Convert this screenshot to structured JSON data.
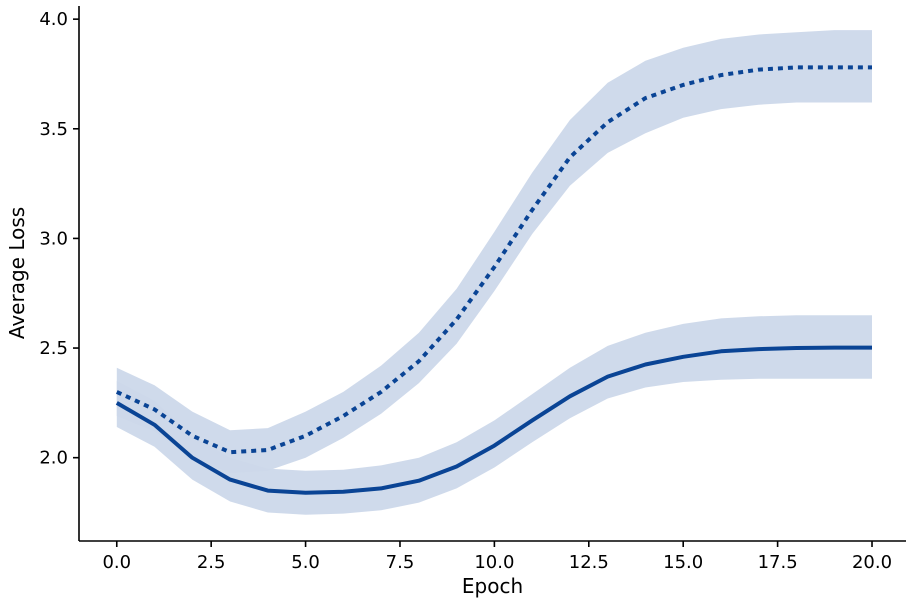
{
  "chart_data": {
    "type": "line",
    "title": "",
    "xlabel": "Epoch",
    "ylabel": "Average Loss",
    "xlim": [
      -1.0,
      20.9
    ],
    "ylim": [
      1.62,
      4.06
    ],
    "xticks": [
      0.0,
      2.5,
      5.0,
      7.5,
      10.0,
      12.5,
      15.0,
      17.5,
      20.0
    ],
    "xtick_labels": [
      "0.0",
      "2.5",
      "5.0",
      "7.5",
      "10.0",
      "12.5",
      "15.0",
      "17.5",
      "20.0"
    ],
    "yticks": [
      2.0,
      2.5,
      3.0,
      3.5,
      4.0
    ],
    "ytick_labels": [
      "2.0",
      "2.5",
      "3.0",
      "3.5",
      "4.0"
    ],
    "grid": false,
    "legend": "none",
    "x": [
      0,
      1,
      2,
      3,
      4,
      5,
      6,
      7,
      8,
      9,
      10,
      11,
      12,
      13,
      14,
      15,
      16,
      17,
      18,
      19,
      20
    ],
    "series": [
      {
        "style": "solid",
        "color": "#0a4495",
        "values": [
          2.25,
          2.15,
          2.0,
          1.9,
          1.85,
          1.84,
          1.845,
          1.86,
          1.895,
          1.96,
          2.055,
          2.17,
          2.28,
          2.37,
          2.425,
          2.46,
          2.485,
          2.495,
          2.5,
          2.502,
          2.502
        ],
        "band": {
          "color": "#ccd8ea",
          "lower": [
            2.14,
            2.05,
            1.9,
            1.8,
            1.75,
            1.74,
            1.745,
            1.76,
            1.795,
            1.86,
            1.955,
            2.07,
            2.18,
            2.27,
            2.32,
            2.345,
            2.355,
            2.36,
            2.36,
            2.36,
            2.36
          ],
          "upper": [
            2.35,
            2.26,
            2.1,
            2.0,
            1.95,
            1.94,
            1.945,
            1.965,
            2.0,
            2.07,
            2.17,
            2.29,
            2.41,
            2.51,
            2.57,
            2.61,
            2.635,
            2.645,
            2.65,
            2.65,
            2.65
          ]
        }
      },
      {
        "style": "dotted",
        "color": "#0a4495",
        "values": [
          2.3,
          2.22,
          2.1,
          2.025,
          2.035,
          2.1,
          2.19,
          2.3,
          2.44,
          2.63,
          2.87,
          3.13,
          3.37,
          3.53,
          3.64,
          3.7,
          3.745,
          3.77,
          3.78,
          3.78,
          3.78
        ],
        "band": {
          "color": "#ccd8ea",
          "lower": [
            2.19,
            2.12,
            2.0,
            1.93,
            1.94,
            2.0,
            2.09,
            2.2,
            2.34,
            2.52,
            2.76,
            3.02,
            3.24,
            3.39,
            3.48,
            3.55,
            3.59,
            3.61,
            3.62,
            3.62,
            3.62
          ],
          "upper": [
            2.41,
            2.33,
            2.21,
            2.125,
            2.135,
            2.21,
            2.3,
            2.42,
            2.57,
            2.77,
            3.03,
            3.3,
            3.54,
            3.71,
            3.81,
            3.87,
            3.91,
            3.93,
            3.94,
            3.95,
            3.95
          ]
        }
      }
    ]
  }
}
